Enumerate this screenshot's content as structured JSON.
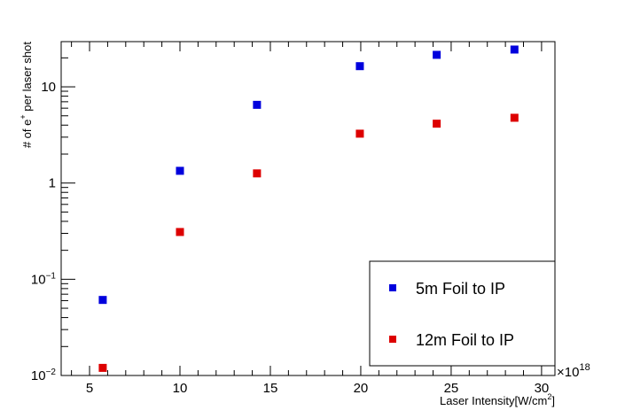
{
  "chart_data": {
    "type": "scatter",
    "title": "",
    "xlabel": "Laser Intensity[W/cm^2]",
    "xlabel_main": "Laser Intensity[W/cm",
    "xlabel_sup": "2",
    "xlabel_end": "]",
    "ylabel": "# of e+ per laser shot",
    "ylabel_pre": "# of e",
    "ylabel_sup": "+",
    "ylabel_post": " per laser shot",
    "x_multiplier": "×10",
    "x_multiplier_exp": "18",
    "xlim": [
      3.43,
      30.74
    ],
    "ylim": [
      0.01,
      29.5
    ],
    "yscale": "log",
    "grid": false,
    "legend_position": "lower right",
    "x_ticks": [
      5,
      10,
      15,
      20,
      25,
      30
    ],
    "x_tick_labels": [
      "5",
      "10",
      "15",
      "20",
      "25",
      "30"
    ],
    "y_ticks": [
      0.01,
      0.1,
      1,
      10
    ],
    "y_tick_labels": [
      {
        "base": "10",
        "exp": "−2"
      },
      {
        "base": "10",
        "exp": "−1"
      },
      {
        "base": "1",
        "exp": ""
      },
      {
        "base": "10",
        "exp": ""
      }
    ],
    "series": [
      {
        "name": "5m Foil to IP",
        "color": "#0000dd",
        "marker": "square",
        "x": [
          5.73,
          10.0,
          14.26,
          19.95,
          24.2,
          28.5
        ],
        "y": [
          0.061,
          1.34,
          6.5,
          16.4,
          21.5,
          24.4
        ]
      },
      {
        "name": "12m Foil to IP",
        "color": "#dd0000",
        "marker": "square",
        "x": [
          5.73,
          10.0,
          14.26,
          19.95,
          24.2,
          28.5
        ],
        "y": [
          0.012,
          0.31,
          1.26,
          3.26,
          4.14,
          4.77
        ]
      }
    ]
  }
}
